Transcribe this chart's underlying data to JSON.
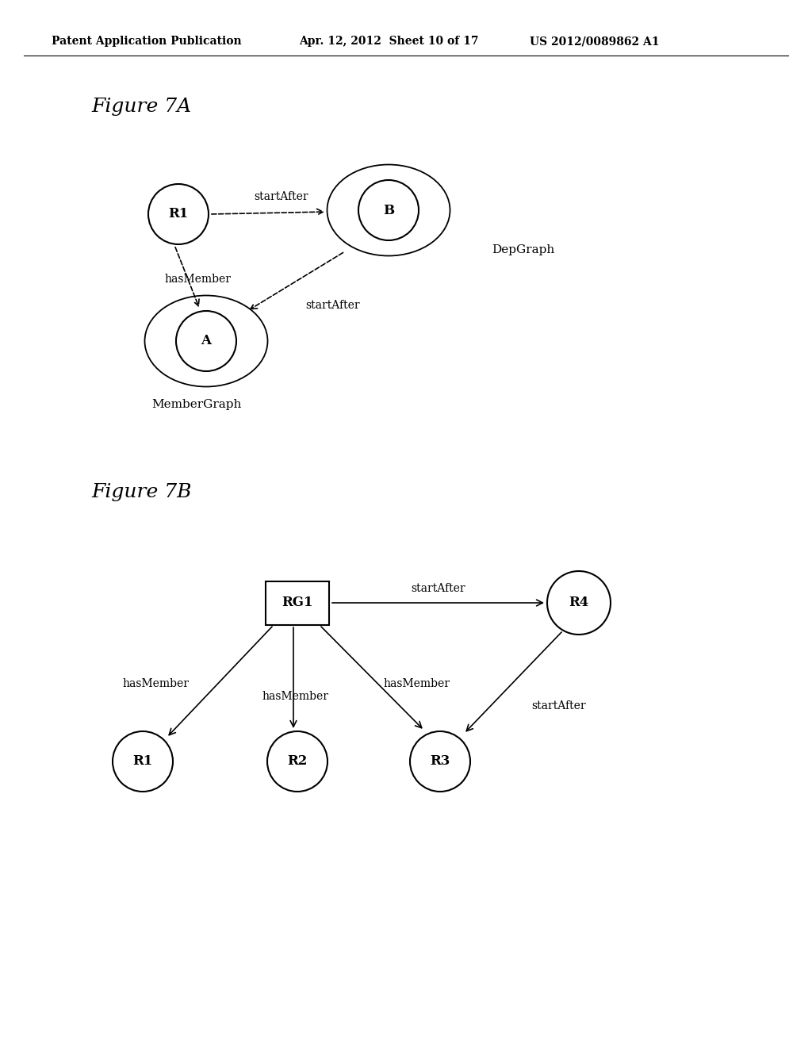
{
  "bg_color": "#ffffff",
  "header_line1": "Patent Application Publication",
  "header_line2": "Apr. 12, 2012  Sheet 10 of 17",
  "header_line3": "US 2012/0089862 A1",
  "fig7a_title": "Figure 7A",
  "fig7b_title": "Figure 7B",
  "figsize": [
    10.24,
    13.2
  ],
  "dpi": 100
}
